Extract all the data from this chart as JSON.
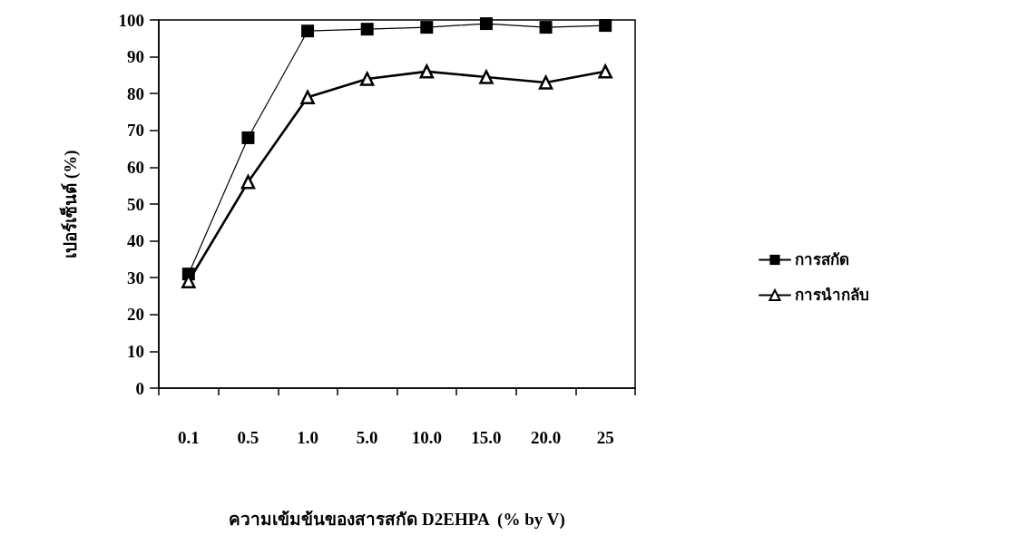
{
  "chart_data": {
    "type": "line",
    "xlabel": "ความเข้มข้นของสารสกัด D2EHPA  (% by V)",
    "ylabel": "เปอร์เซ็นต์ (%)",
    "categories": [
      "0.1",
      "0.5",
      "1.0",
      "5.0",
      "10.0",
      "15.0",
      "20.0",
      "25"
    ],
    "series": [
      {
        "name": "การสกัด",
        "color": "#000000",
        "marker": "square",
        "values": [
          31,
          68,
          97,
          97.5,
          98,
          99,
          98,
          98.5
        ]
      },
      {
        "name": "การนำกลับ",
        "color": "#000000",
        "marker": "triangle",
        "values": [
          29,
          56,
          79,
          84,
          86,
          84.5,
          83,
          86
        ]
      }
    ],
    "ylim": [
      0,
      100
    ],
    "yticks": [
      0,
      10,
      20,
      30,
      40,
      50,
      60,
      70,
      80,
      90,
      100
    ],
    "grid": false,
    "legend": "right",
    "line_style": "solid"
  }
}
